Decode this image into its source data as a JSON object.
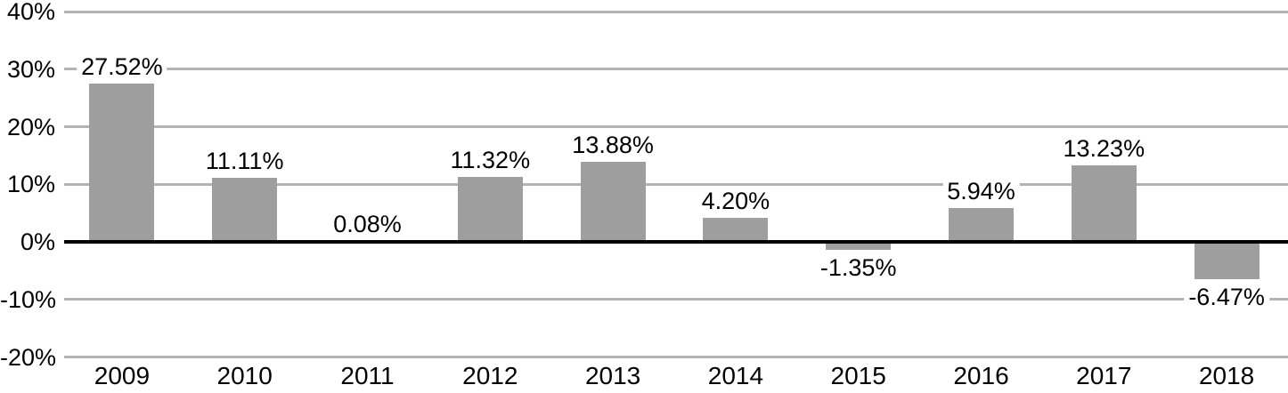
{
  "chart_data": {
    "type": "bar",
    "title": "",
    "xlabel": "",
    "ylabel": "",
    "categories": [
      "2009",
      "2010",
      "2011",
      "2012",
      "2013",
      "2014",
      "2015",
      "2016",
      "2017",
      "2018"
    ],
    "values": [
      27.52,
      11.11,
      0.08,
      11.32,
      13.88,
      4.2,
      -1.35,
      5.94,
      13.23,
      -6.47
    ],
    "bar_labels": [
      "27.52%",
      "11.11%",
      "0.08%",
      "11.32%",
      "13.88%",
      "4.20%",
      "-1.35%",
      "5.94%",
      "13.23%",
      "-6.47%"
    ],
    "ylim": [
      -20,
      40
    ],
    "yticks": [
      {
        "value": 40,
        "label": "40%"
      },
      {
        "value": 30,
        "label": "30%"
      },
      {
        "value": 20,
        "label": "20%"
      },
      {
        "value": 10,
        "label": "10%"
      },
      {
        "value": 0,
        "label": "0%"
      },
      {
        "value": -10,
        "label": "-10%"
      },
      {
        "value": -20,
        "label": "-20%"
      }
    ],
    "grid": true,
    "legend": false,
    "colors": {
      "bar": "#9e9e9e",
      "gridline": "#b3b3b3",
      "zero_line": "#000000",
      "text": "#000000",
      "background": "#ffffff"
    }
  }
}
